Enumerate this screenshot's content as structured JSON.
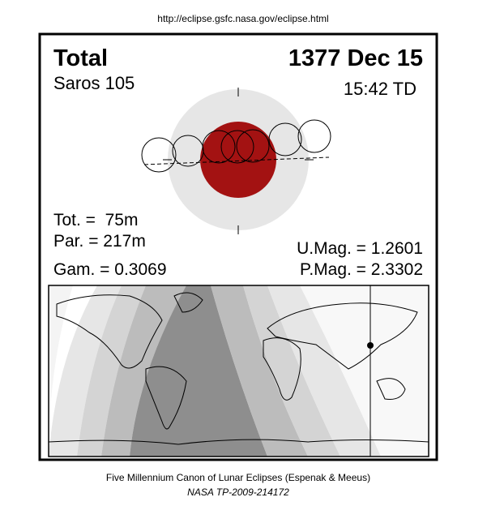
{
  "header": {
    "url": "http://eclipse.gsfc.nasa.gov/eclipse.html"
  },
  "eclipse": {
    "type": "Total",
    "date": "1377 Dec 15",
    "saros": "Saros 105",
    "time": "15:42 TD"
  },
  "stats": {
    "totality": "Tot. =  75m",
    "partial": "Par. = 217m",
    "gamma": "Gam. = 0.3069",
    "umbral_magnitude": "U.Mag. = 1.2601",
    "penumbral_magnitude": "P.Mag. = 2.3302"
  },
  "footer": {
    "canon": "Five Millennium Canon of Lunar Eclipses (Espenak & Meeus)",
    "publication": "NASA TP-2009-214172"
  }
}
